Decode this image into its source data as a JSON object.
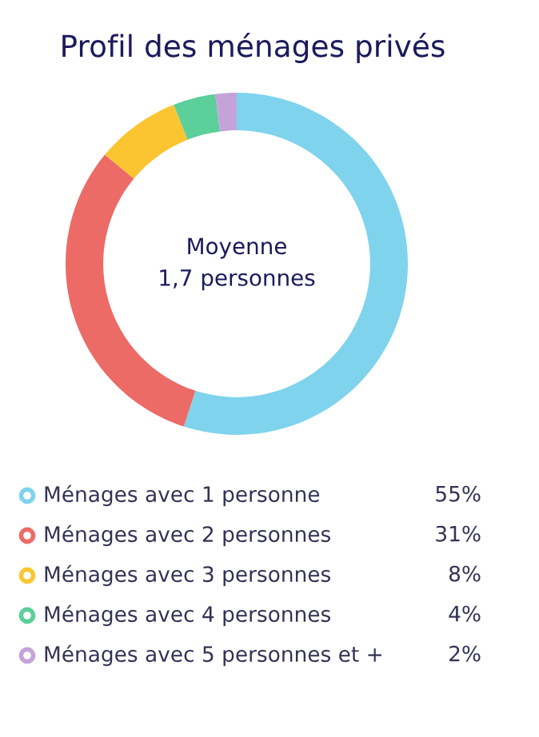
{
  "chart_data": {
    "type": "donut",
    "title": "Profil des ménages privés",
    "annotations": [
      "Moyenne\n1,7 personnes"
    ],
    "categories": [
      "Ménages avec 1 personne",
      "Ménages avec 2 personnes",
      "Ménages avec 3 personnes",
      "Ménages avec 4 personnes",
      "Ménages avec 5 personnes et +"
    ],
    "values": [
      55,
      31,
      8,
      4,
      2
    ],
    "colors": [
      "#7fd3ec",
      "#ec6b67",
      "#fbc531",
      "#5ccf9a",
      "#c3a3d9"
    ],
    "value_labels": [
      "55%",
      "31%",
      "8%",
      "4%",
      "2%"
    ],
    "legend": "bottom"
  }
}
